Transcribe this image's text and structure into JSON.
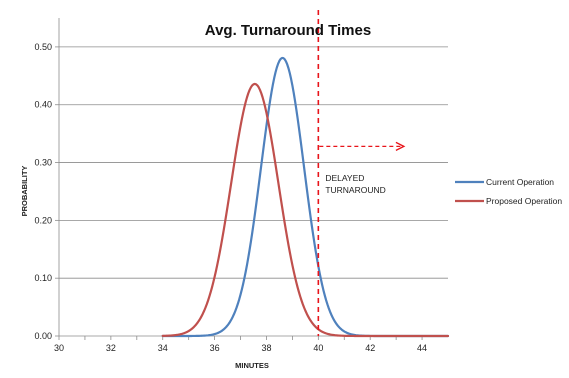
{
  "chart_data": {
    "type": "line",
    "title": "Avg. Turnaround Times",
    "xlabel": "MINUTES",
    "ylabel": "PROBABILITY",
    "xlim": [
      30,
      45
    ],
    "ylim": [
      0,
      0.55
    ],
    "x_ticks": [
      30,
      32,
      34,
      36,
      38,
      40,
      42,
      44
    ],
    "y_ticks": [
      0.0,
      0.1,
      0.2,
      0.3,
      0.4,
      0.5
    ],
    "x_tick_labels": [
      "30",
      "32",
      "34",
      "36",
      "38",
      "40",
      "42",
      "44"
    ],
    "y_tick_labels": [
      "0.00",
      "0.10",
      "0.20",
      "0.30",
      "0.40",
      "0.50"
    ],
    "grid": "horizontal",
    "legend_position": "right",
    "series": [
      {
        "name": "Current Operation",
        "color": "#4f81bd",
        "distribution": "normal",
        "mean": 38.62,
        "peak": 0.481,
        "sd": 0.83,
        "x_range": [
          34,
          45
        ]
      },
      {
        "name": "Proposed Operation",
        "color": "#c0504d",
        "distribution": "normal",
        "mean": 37.55,
        "peak": 0.436,
        "sd": 0.91,
        "x_range": [
          34,
          45
        ]
      }
    ],
    "threshold": {
      "x": 40,
      "color": "#e8141a",
      "label": "DELAYED TURNAROUND",
      "label_lines": [
        "DELAYED",
        "TURNAROUND"
      ],
      "arrow_y": 0.328,
      "arrow_to_x": 43.3
    }
  }
}
